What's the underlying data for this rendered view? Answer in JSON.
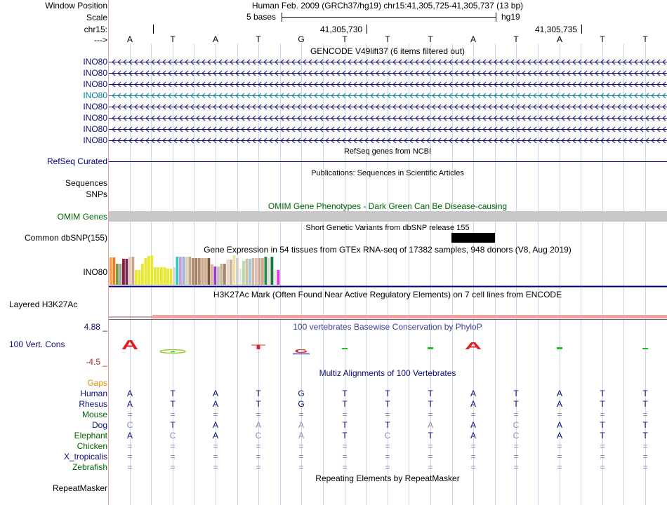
{
  "colors": {
    "navy": "#00007f",
    "green": "#006400",
    "gencode": "#0c0c78",
    "gencode_selected": "#0a7a9a",
    "orange": "#e08f00",
    "cons_top": "#0c0c78",
    "cons_bottom": "#b03030",
    "h3k27": "#f0a0a0",
    "omim_bar": "#c8c8c8",
    "grid": "#c8d8f0",
    "label_edge": "#e8a0a0"
  },
  "header": {
    "window_position_label": "Window Position",
    "window_position_text": "Human Feb. 2009 (GRCh37/hg19)   chr15:41,305,725-41,305,737 (13 bp)",
    "scale_label": "Scale",
    "scale_text": "5 bases",
    "assembly": "hg19",
    "chrom_label": "chr15:",
    "coord_a": "41,305,730",
    "coord_b": "41,305,735",
    "strand_label": "--->"
  },
  "sequence": [
    "A",
    "T",
    "A",
    "T",
    "G",
    "T",
    "T",
    "T",
    "A",
    "T",
    "A",
    "T",
    "T"
  ],
  "gencode": {
    "title": "GENCODE V49lift37 (6 items filtered out)",
    "genes": [
      "INO80",
      "INO80",
      "INO80",
      "INO80",
      "INO80",
      "INO80",
      "INO80",
      "INO80"
    ],
    "selected_index": 3
  },
  "refseq": {
    "title": "RefSeq genes from NCBI",
    "label": "RefSeq Curated"
  },
  "publications": {
    "title": "Publications: Sequences in Scientific Articles",
    "label1": "Sequences",
    "label2": "SNPs"
  },
  "omim": {
    "title": "OMIM Gene Phenotypes - Dark Green Can Be Disease-causing",
    "label": "OMIM Genes"
  },
  "dbsnp": {
    "title": "Short Genetic Variants from dbSNP release 155",
    "label": "Common dbSNP(155)"
  },
  "gtex": {
    "title": "Gene Expression in 54 tissues from GTEx RNA-seq of 17382 samples, 948 donors (V8, Aug 2019)",
    "label": "INO80",
    "bars": [
      {
        "c": "#f5a04a",
        "v": 0.92
      },
      {
        "c": "#f07c2c",
        "v": 0.92
      },
      {
        "c": "#7a9a3a",
        "v": 0.72
      },
      {
        "c": "#a0a0a0",
        "v": 0.72
      },
      {
        "c": "#8b1e2e",
        "v": 0.88
      },
      {
        "c": "#6a2a5a",
        "v": 0.88
      },
      {
        "c": "#e8c8b8",
        "v": 0.95
      },
      {
        "c": "#c8a890",
        "v": 0.95
      },
      {
        "c": "#e8e832",
        "v": 0.5
      },
      {
        "c": "#e8e832",
        "v": 0.5
      },
      {
        "c": "#e8e832",
        "v": 0.72
      },
      {
        "c": "#e8e832",
        "v": 0.9
      },
      {
        "c": "#e8e832",
        "v": 0.98
      },
      {
        "c": "#e8e832",
        "v": 1.0
      },
      {
        "c": "#e8e832",
        "v": 0.6
      },
      {
        "c": "#e8e832",
        "v": 0.6
      },
      {
        "c": "#e8e832",
        "v": 0.6
      },
      {
        "c": "#e8e832",
        "v": 0.6
      },
      {
        "c": "#e8e832",
        "v": 0.55
      },
      {
        "c": "#e8e832",
        "v": 0.55
      },
      {
        "c": "#d8d8d8",
        "v": 0.6
      },
      {
        "c": "#32c8c8",
        "v": 0.95
      },
      {
        "c": "#c8a0d8",
        "v": 0.95
      },
      {
        "c": "#a0b0d8",
        "v": 0.95
      },
      {
        "c": "#e0d0c0",
        "v": 0.95
      },
      {
        "c": "#c0a890",
        "v": 0.95
      },
      {
        "c": "#b08c6c",
        "v": 0.9
      },
      {
        "c": "#a08060",
        "v": 0.9
      },
      {
        "c": "#b49070",
        "v": 0.9
      },
      {
        "c": "#c8a888",
        "v": 0.9
      },
      {
        "c": "#d0b090",
        "v": 0.9
      },
      {
        "c": "#7a5a3a",
        "v": 0.9
      },
      {
        "c": "#d8b8a0",
        "v": 0.68
      },
      {
        "c": "#9a3ac8",
        "v": 0.62
      },
      {
        "c": "#bfbfbf",
        "v": 0.62
      },
      {
        "c": "#c8b090",
        "v": 0.72
      },
      {
        "c": "#a08870",
        "v": 0.72
      },
      {
        "c": "#e8d8c8",
        "v": 0.85
      },
      {
        "c": "#d0b0a0",
        "v": 0.85
      },
      {
        "c": "#f0e0a0",
        "v": 1.0
      },
      {
        "c": "#d0d0d0",
        "v": 0.9
      },
      {
        "c": "#e8e8e8",
        "v": 0.55
      },
      {
        "c": "#b8d8a8",
        "v": 0.82
      },
      {
        "c": "#d0c0a0",
        "v": 0.88
      },
      {
        "c": "#a0c8d8",
        "v": 0.88
      },
      {
        "c": "#d0b8a0",
        "v": 0.9
      },
      {
        "c": "#e0c0b0",
        "v": 0.9
      },
      {
        "c": "#c8a890",
        "v": 0.9
      },
      {
        "c": "#c8a890",
        "v": 0.9
      },
      {
        "c": "#2a8a4a",
        "v": 0.95
      },
      {
        "c": "#e0e0e0",
        "v": 0.9
      },
      {
        "c": "#1a7a3a",
        "v": 0.95
      },
      {
        "c": "#e8e8e8",
        "v": 0.5
      },
      {
        "c": "#e832e8",
        "v": 0.5
      }
    ]
  },
  "h3k27": {
    "title": "H3K27Ac Mark (Often Found Near Active Regulatory Elements) on 7 cell lines from ENCODE",
    "label": "Layered H3K27Ac"
  },
  "phylop": {
    "title": "100 vertebrates Basewise Conservation by PhyloP",
    "label": "100 Vert. Cons",
    "max_label": "4.88 _",
    "min_label": "-4.5 _",
    "scores": [
      2.1,
      -0.8,
      0,
      0.9,
      -0.6,
      0.3,
      0,
      0.5,
      1.6,
      0,
      0.5,
      0,
      0.3
    ]
  },
  "multiz": {
    "title": "Multiz Alignments of 100 Vertebrates",
    "gaps_label": "Gaps",
    "species": [
      {
        "name": "Human",
        "bases": [
          "A",
          "T",
          "A",
          "T",
          "G",
          "T",
          "T",
          "T",
          "A",
          "T",
          "A",
          "T",
          "T"
        ]
      },
      {
        "name": "Rhesus",
        "bases": [
          "A",
          "T",
          "A",
          "T",
          "G",
          "T",
          "T",
          "T",
          "A",
          "T",
          "A",
          "T",
          "T"
        ]
      },
      {
        "name": "Mouse",
        "bases": [
          "=",
          "=",
          "=",
          "=",
          "=",
          "=",
          "=",
          "=",
          "=",
          "=",
          "=",
          "=",
          "="
        ]
      },
      {
        "name": "Dog",
        "bases": [
          "C",
          "T",
          "A",
          "A",
          "A",
          "T",
          "T",
          "A",
          "A",
          "C",
          "A",
          "T",
          "T"
        ]
      },
      {
        "name": "Elephant",
        "bases": [
          "A",
          "C",
          "A",
          "C",
          "A",
          "T",
          "C",
          "T",
          "A",
          "C",
          "A",
          "T",
          "T"
        ]
      },
      {
        "name": "Chicken",
        "bases": [
          "=",
          "=",
          "=",
          "=",
          "=",
          "=",
          "=",
          "=",
          "=",
          "=",
          "=",
          "=",
          "="
        ]
      },
      {
        "name": "X_tropicalis",
        "bases": [
          "=",
          "=",
          "=",
          "=",
          "=",
          "=",
          "=",
          "=",
          "=",
          "=",
          "=",
          "=",
          "="
        ]
      },
      {
        "name": "Zebrafish",
        "bases": [
          "=",
          "=",
          "=",
          "=",
          "=",
          "=",
          "=",
          "=",
          "=",
          "=",
          "=",
          "=",
          "="
        ]
      }
    ]
  },
  "repeatmasker": {
    "title": "Repeating Elements by RepeatMasker",
    "label": "RepeatMasker"
  }
}
